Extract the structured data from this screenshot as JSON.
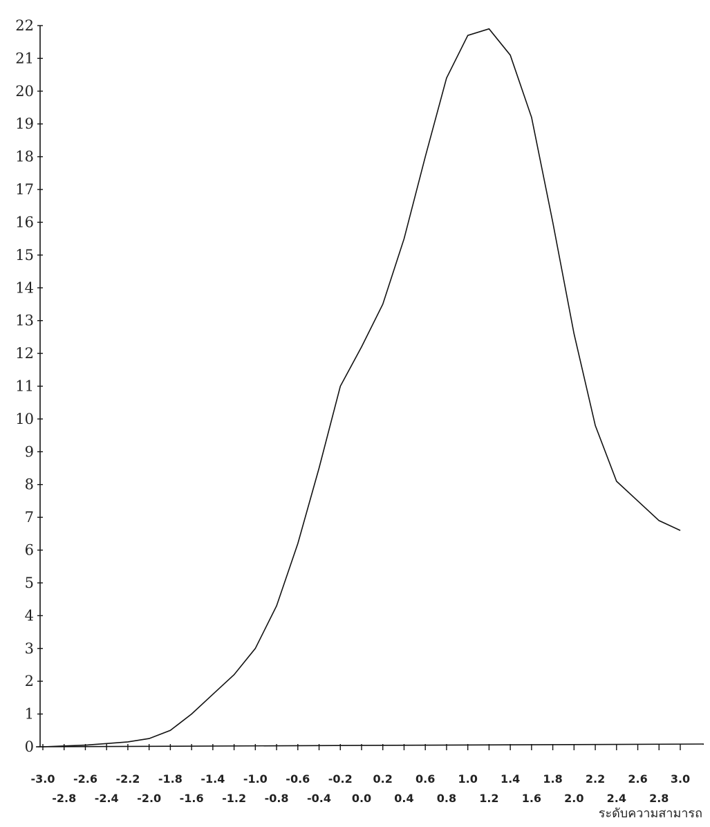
{
  "chart_data": {
    "type": "line",
    "title": "",
    "xlabel": "ระดับความสามารถ",
    "ylabel": "",
    "ylim": [
      0,
      22
    ],
    "xlim": [
      -3.0,
      3.0
    ],
    "grid": false,
    "y_ticks": [
      "0",
      "1",
      "2",
      "3",
      "4",
      "5",
      "6",
      "7",
      "8",
      "9",
      "10",
      "11",
      "12",
      "13",
      "14",
      "15",
      "16",
      "17",
      "18",
      "19",
      "20",
      "21",
      "22"
    ],
    "x_ticks_upper": [
      "-3.0",
      "-2.6",
      "-2.2",
      "-1.8",
      "-1.4",
      "-1.0",
      "-0.6",
      "-0.2",
      "0.2",
      "0.6",
      "1.0",
      "1.4",
      "1.8",
      "2.2",
      "2.6",
      "3.0"
    ],
    "x_ticks_lower": [
      "-2.8",
      "-2.4",
      "-2.0",
      "-1.6",
      "-1.2",
      "-0.8",
      "-0.4",
      "0.0",
      "0.4",
      "0.8",
      "1.2",
      "1.6",
      "2.0",
      "2.4",
      "2.8"
    ],
    "series": [
      {
        "x": [
          -3.0,
          -2.6,
          -2.4,
          -2.2,
          -2.0,
          -1.8,
          -1.6,
          -1.4,
          -1.2,
          -1.0,
          -0.8,
          -0.6,
          -0.4,
          -0.2,
          0.0,
          0.2,
          0.4,
          0.6,
          0.8,
          1.0,
          1.2,
          1.4,
          1.6,
          1.8,
          2.0,
          2.2,
          2.4,
          2.6,
          2.8,
          3.0
        ],
        "values": [
          0,
          0.05,
          0.1,
          0.15,
          0.25,
          0.5,
          1.0,
          1.6,
          2.2,
          3.0,
          4.3,
          6.2,
          8.5,
          11.0,
          12.2,
          13.5,
          15.5,
          18.0,
          20.4,
          21.7,
          21.9,
          21.1,
          19.2,
          16.0,
          12.6,
          9.8,
          8.1,
          7.5,
          6.9,
          6.6
        ]
      }
    ]
  }
}
